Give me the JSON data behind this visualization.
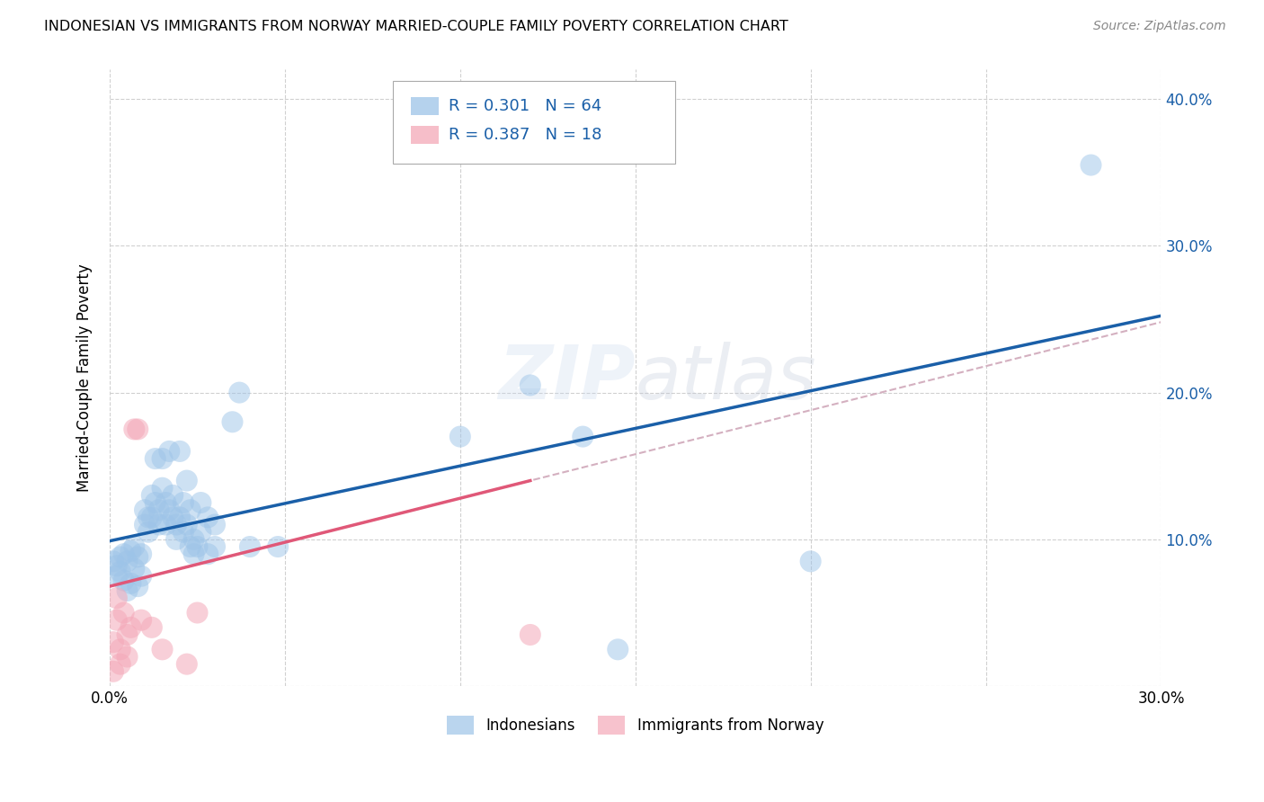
{
  "title": "INDONESIAN VS IMMIGRANTS FROM NORWAY MARRIED-COUPLE FAMILY POVERTY CORRELATION CHART",
  "source": "Source: ZipAtlas.com",
  "ylabel": "Married-Couple Family Poverty",
  "xlim": [
    0.0,
    0.3
  ],
  "ylim": [
    0.0,
    0.42
  ],
  "x_ticks": [
    0.0,
    0.05,
    0.1,
    0.15,
    0.2,
    0.25,
    0.3
  ],
  "y_ticks": [
    0.0,
    0.1,
    0.2,
    0.3,
    0.4
  ],
  "grid_color": "#d0d0d0",
  "background_color": "#ffffff",
  "watermark": "ZIPatlas",
  "indonesian_color": "#9dc4e8",
  "norway_color": "#f4a8b8",
  "indonesian_R": 0.301,
  "indonesian_N": 64,
  "norway_R": 0.387,
  "norway_N": 18,
  "indonesian_scatter": [
    [
      0.001,
      0.085
    ],
    [
      0.002,
      0.082
    ],
    [
      0.002,
      0.075
    ],
    [
      0.003,
      0.088
    ],
    [
      0.003,
      0.078
    ],
    [
      0.004,
      0.09
    ],
    [
      0.004,
      0.072
    ],
    [
      0.005,
      0.085
    ],
    [
      0.005,
      0.065
    ],
    [
      0.006,
      0.092
    ],
    [
      0.006,
      0.07
    ],
    [
      0.007,
      0.095
    ],
    [
      0.007,
      0.08
    ],
    [
      0.008,
      0.088
    ],
    [
      0.008,
      0.068
    ],
    [
      0.009,
      0.09
    ],
    [
      0.009,
      0.075
    ],
    [
      0.01,
      0.11
    ],
    [
      0.01,
      0.12
    ],
    [
      0.011,
      0.115
    ],
    [
      0.011,
      0.105
    ],
    [
      0.012,
      0.13
    ],
    [
      0.012,
      0.115
    ],
    [
      0.013,
      0.125
    ],
    [
      0.013,
      0.155
    ],
    [
      0.014,
      0.12
    ],
    [
      0.014,
      0.11
    ],
    [
      0.015,
      0.135
    ],
    [
      0.015,
      0.155
    ],
    [
      0.016,
      0.125
    ],
    [
      0.016,
      0.11
    ],
    [
      0.017,
      0.16
    ],
    [
      0.017,
      0.12
    ],
    [
      0.018,
      0.13
    ],
    [
      0.018,
      0.115
    ],
    [
      0.019,
      0.11
    ],
    [
      0.019,
      0.1
    ],
    [
      0.02,
      0.16
    ],
    [
      0.02,
      0.115
    ],
    [
      0.021,
      0.105
    ],
    [
      0.021,
      0.125
    ],
    [
      0.022,
      0.14
    ],
    [
      0.022,
      0.11
    ],
    [
      0.023,
      0.12
    ],
    [
      0.023,
      0.095
    ],
    [
      0.024,
      0.1
    ],
    [
      0.024,
      0.09
    ],
    [
      0.025,
      0.095
    ],
    [
      0.026,
      0.105
    ],
    [
      0.026,
      0.125
    ],
    [
      0.028,
      0.115
    ],
    [
      0.028,
      0.09
    ],
    [
      0.03,
      0.11
    ],
    [
      0.03,
      0.095
    ],
    [
      0.035,
      0.18
    ],
    [
      0.037,
      0.2
    ],
    [
      0.04,
      0.095
    ],
    [
      0.048,
      0.095
    ],
    [
      0.1,
      0.17
    ],
    [
      0.12,
      0.205
    ],
    [
      0.135,
      0.17
    ],
    [
      0.145,
      0.025
    ],
    [
      0.2,
      0.085
    ],
    [
      0.28,
      0.355
    ]
  ],
  "norway_scatter": [
    [
      0.001,
      0.01
    ],
    [
      0.001,
      0.03
    ],
    [
      0.002,
      0.045
    ],
    [
      0.002,
      0.06
    ],
    [
      0.003,
      0.025
    ],
    [
      0.003,
      0.015
    ],
    [
      0.004,
      0.05
    ],
    [
      0.005,
      0.02
    ],
    [
      0.005,
      0.035
    ],
    [
      0.006,
      0.04
    ],
    [
      0.007,
      0.175
    ],
    [
      0.008,
      0.175
    ],
    [
      0.009,
      0.045
    ],
    [
      0.012,
      0.04
    ],
    [
      0.015,
      0.025
    ],
    [
      0.022,
      0.015
    ],
    [
      0.025,
      0.05
    ],
    [
      0.12,
      0.035
    ]
  ],
  "indonesian_line_color": "#1a5fa8",
  "norway_solid_color": "#e05878",
  "norway_dash_color": "#d4b0c0"
}
